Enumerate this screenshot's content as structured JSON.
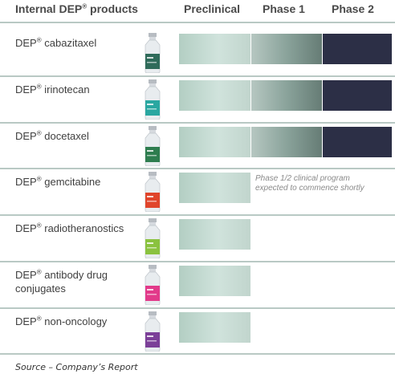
{
  "header": {
    "products_label": "Internal DEP",
    "products_reg": "®",
    "products_suffix": " products",
    "phases": [
      "Preclinical",
      "Phase 1",
      "Phase 2"
    ]
  },
  "colors": {
    "preclinical_bar": "#c3dad1",
    "phase1_bar": "#7d958e",
    "phase2_bar": "#2c2f46",
    "divider": "#b9c9c4"
  },
  "products": [
    {
      "name_prefix": "DEP",
      "reg": "®",
      "name": " cabazitaxel",
      "vial_label_color": "#2f6b5a",
      "stage_reached": "Phase 2"
    },
    {
      "name_prefix": "DEP",
      "reg": "®",
      "name": " irinotecan",
      "vial_label_color": "#2aa7a1",
      "stage_reached": "Phase 2"
    },
    {
      "name_prefix": "DEP",
      "reg": "®",
      "name": " docetaxel",
      "vial_label_color": "#2e7d4f",
      "stage_reached": "Phase 2"
    },
    {
      "name_prefix": "DEP",
      "reg": "®",
      "name": " gemcitabine",
      "vial_label_color": "#e0452b",
      "stage_reached": "Preclinical",
      "note_line1": "Phase 1/2 clinical program",
      "note_line2": "expected to commence shortly"
    },
    {
      "name_prefix": "DEP",
      "reg": "®",
      "name": " radiotheranostics",
      "vial_label_color": "#8ac23f",
      "stage_reached": "Preclinical"
    },
    {
      "name_prefix": "DEP",
      "reg": "®",
      "name": " antibody drug",
      "name_line2": "conjugates",
      "vial_label_color": "#e23a8a",
      "stage_reached": "Preclinical"
    },
    {
      "name_prefix": "DEP",
      "reg": "®",
      "name": " non-oncology",
      "vial_label_color": "#7b3f98",
      "stage_reached": "Preclinical"
    }
  ],
  "source": "Source – Company’s Report"
}
